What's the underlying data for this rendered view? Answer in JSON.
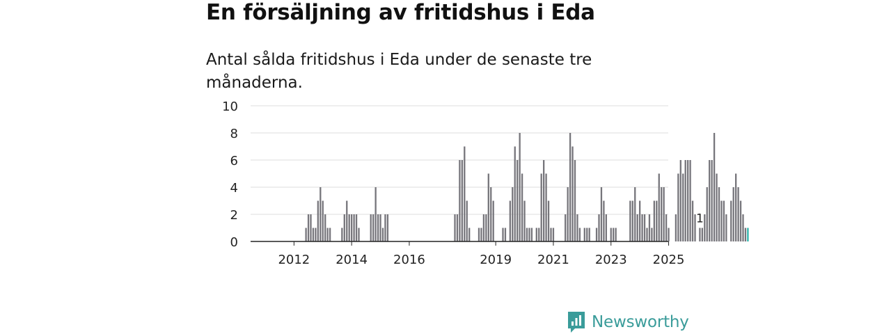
{
  "title": "En försäljning av fritidshus i Eda",
  "subtitle": "Antal sålda fritidshus i Eda under de senaste tre månaderna.",
  "brand": {
    "name": "Newsworthy"
  },
  "colors": {
    "bar": "#76757b",
    "highlight": "#2bb3aa",
    "grid": "#dddddd",
    "axis": "#222222",
    "text": "#222222",
    "brand": "#3a9c9a"
  },
  "chart_data": {
    "type": "bar",
    "title": "En försäljning av fritidshus i Eda",
    "xlabel": "",
    "ylabel": "",
    "ylim": [
      0,
      10
    ],
    "yticks": [
      0,
      2,
      4,
      6,
      8,
      10
    ],
    "xticks": [
      "2012",
      "2014",
      "2016",
      "2019",
      "2021",
      "2023",
      "2025"
    ],
    "xtick_index": [
      6,
      30,
      54,
      90,
      114,
      138,
      162
    ],
    "annotation": {
      "index": 175,
      "label": "1"
    },
    "values": [
      0,
      0,
      0,
      0,
      0,
      0,
      0,
      0,
      0,
      0,
      0,
      1,
      2,
      2,
      1,
      1,
      3,
      4,
      3,
      2,
      1,
      1,
      0,
      0,
      0,
      0,
      1,
      2,
      3,
      2,
      2,
      2,
      2,
      1,
      0,
      0,
      0,
      0,
      2,
      2,
      4,
      2,
      2,
      1,
      2,
      2,
      0,
      0,
      0,
      0,
      0,
      0,
      0,
      0,
      0,
      0,
      0,
      0,
      0,
      0,
      0,
      0,
      0,
      0,
      0,
      0,
      0,
      0,
      0,
      0,
      0,
      0,
      0,
      2,
      2,
      6,
      6,
      7,
      3,
      1,
      0,
      0,
      0,
      1,
      1,
      2,
      2,
      5,
      4,
      3,
      0,
      0,
      0,
      1,
      1,
      0,
      3,
      4,
      7,
      6,
      8,
      5,
      3,
      1,
      1,
      1,
      0,
      1,
      1,
      5,
      6,
      5,
      3,
      1,
      1,
      0,
      0,
      0,
      0,
      2,
      4,
      8,
      7,
      6,
      2,
      1,
      0,
      1,
      1,
      1,
      0,
      0,
      1,
      2,
      4,
      3,
      2,
      0,
      1,
      1,
      1,
      0,
      0,
      0,
      0,
      0,
      3,
      3,
      4,
      2,
      3,
      2,
      2,
      1,
      2,
      1,
      3,
      3,
      5,
      4,
      4,
      2,
      1,
      0,
      0,
      2,
      5,
      6,
      5,
      6,
      6,
      6,
      3,
      2,
      0,
      1,
      1,
      2,
      4,
      6,
      6,
      8,
      5,
      4,
      3,
      3,
      2,
      0,
      3,
      4,
      5,
      4,
      3,
      2,
      1,
      1
    ]
  }
}
